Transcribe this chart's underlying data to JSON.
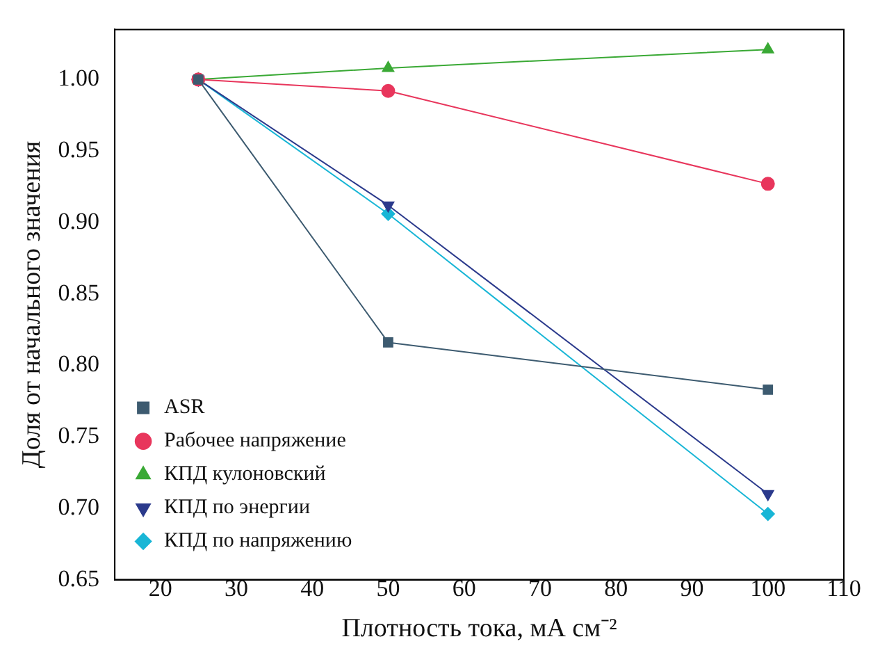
{
  "chart_data": {
    "type": "line",
    "xlabel": "Плотность тока, мА см⁻²",
    "ylabel": "Доля от начального значения",
    "x": [
      25,
      50,
      100
    ],
    "xlim": [
      14,
      110
    ],
    "xticks": [
      20,
      30,
      40,
      50,
      60,
      70,
      80,
      90,
      100,
      110
    ],
    "ylim": [
      0.65,
      1.035
    ],
    "yticks": [
      0.65,
      {
        "value": 0.7,
        "label": "0.70"
      },
      0.75,
      {
        "value": 0.8,
        "label": "0.80"
      },
      0.85,
      {
        "value": 0.9,
        "label": "0.90"
      },
      0.95,
      {
        "value": 1.0,
        "label": "1.00"
      }
    ],
    "grid": false,
    "legend": "bottom left",
    "line_style": "solid",
    "series": [
      {
        "name": "ASR",
        "color": "#3d5b70",
        "marker": "square",
        "values": [
          1.0,
          0.816,
          0.783
        ]
      },
      {
        "name": "Рабочее напряжение",
        "color": "#e8365c",
        "marker": "circle",
        "values": [
          1.0,
          0.992,
          0.927
        ]
      },
      {
        "name": "КПД кулоновский",
        "color": "#3aa935",
        "marker": "triangle",
        "values": [
          1.0,
          1.008,
          1.021
        ]
      },
      {
        "name": "КПД по энергии",
        "color": "#2b3a8c",
        "marker": "triangle-down",
        "values": [
          1.0,
          0.912,
          0.71
        ]
      },
      {
        "name": "КПД по напряжению",
        "color": "#19b6d6",
        "marker": "diamond",
        "values": [
          1.0,
          0.906,
          0.696
        ]
      }
    ]
  }
}
